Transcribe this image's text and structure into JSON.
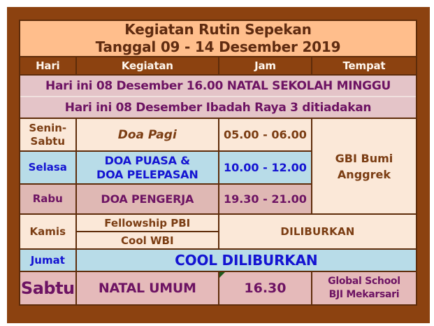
{
  "title": {
    "line1": "Kegiatan Rutin Sepekan",
    "line2": "Tanggal 09 - 14 Desember 2019"
  },
  "columns": {
    "hari": "Hari",
    "kegiatan": "Kegiatan",
    "jam": "Jam",
    "tempat": "Tempat"
  },
  "announcements": {
    "natal_sekolah_minggu": "Hari ini 08 Desember 16.00 NATAL SEKOLAH MINGGU",
    "ibadah_raya": "Hari ini 08 Desember Ibadah Raya 3 ditiadakan"
  },
  "schedule": {
    "senin_sabtu": {
      "hari_line1": "Senin-",
      "hari_line2": "Sabtu",
      "kegiatan": "Doa Pagi",
      "jam": "05.00 - 06.00"
    },
    "selasa": {
      "hari": "Selasa",
      "kegiatan_line1": "DOA PUASA &",
      "kegiatan_line2": "DOA PELEPASAN",
      "jam": "10.00 - 12.00"
    },
    "rabu": {
      "hari": "Rabu",
      "kegiatan": "DOA PENGERJA",
      "jam": "19.30 - 21.00"
    },
    "tempat_senin_rabu": {
      "line1": "GBI Bumi",
      "line2": "Anggrek"
    },
    "kamis": {
      "hari": "Kamis",
      "kegiatan_atas": "Fellowship PBI",
      "kegiatan_bawah": "Cool WBI",
      "status": "DILIBURKAN"
    },
    "jumat": {
      "hari": "Jumat",
      "status": "COOL DILIBURKAN"
    },
    "sabtu": {
      "hari": "Sabtu",
      "kegiatan": "NATAL UMUM",
      "jam": "16.30",
      "tempat_line1": "Global School",
      "tempat_line2": "BJI Mekarsari"
    }
  },
  "colors": {
    "frame_brown": "#8C4210",
    "border_dark": "#5E2C0A",
    "title_bg": "#FFBE8C",
    "announcement_bg": "#E4C4C8",
    "cream_bg": "#FBE8D8",
    "blue_bg": "#B8DCE8",
    "rabu_bg": "#DFB8B4",
    "sabtu_bg": "#E5BABA",
    "title_text": "#5F2B10",
    "brown_text": "#7B3D13",
    "purple_text": "#6D1363",
    "blue_text": "#1414D2",
    "header_text": "#FFF7EE",
    "marker_green": "#1E5A1E"
  }
}
